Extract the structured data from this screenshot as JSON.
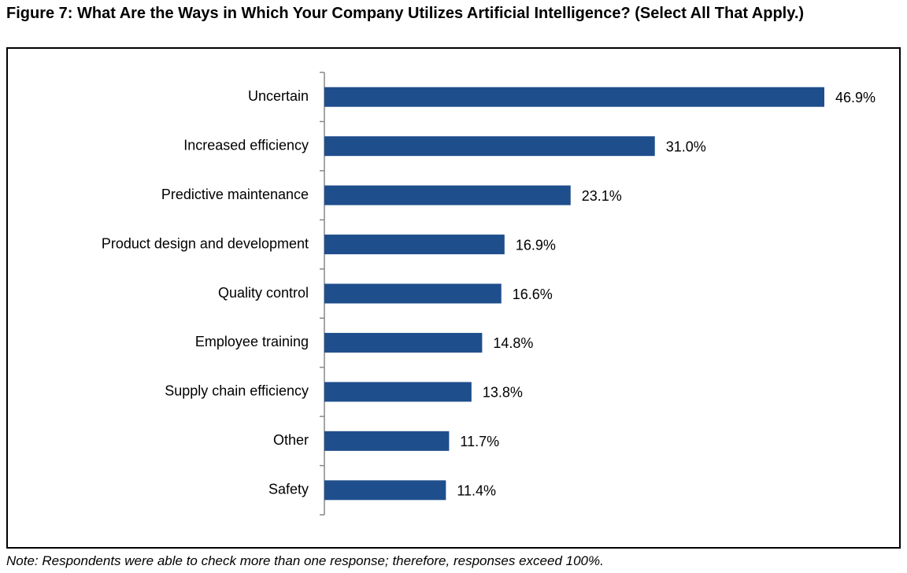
{
  "figure": {
    "title": "Figure 7: What Are the Ways in Which Your Company Utilizes Artificial Intelligence? (Select All That Apply.)",
    "note": "Note: Respondents were able to check more than one response; therefore, responses exceed 100%."
  },
  "chart_data": {
    "type": "bar",
    "orientation": "horizontal",
    "categories": [
      "Uncertain",
      "Increased efficiency",
      "Predictive maintenance",
      "Product design and development",
      "Quality control",
      "Employee training",
      "Supply chain efficiency",
      "Other",
      "Safety"
    ],
    "values": [
      46.9,
      31.0,
      23.1,
      16.9,
      16.6,
      14.8,
      13.8,
      11.7,
      11.4
    ],
    "data_labels": [
      "46.9%",
      "31.0%",
      "23.1%",
      "16.9%",
      "16.6%",
      "14.8%",
      "13.8%",
      "11.7%",
      "11.4%"
    ],
    "xlim": [
      0,
      50
    ],
    "bar_color": "#1f4e8c",
    "grid": false,
    "legend": "none"
  }
}
